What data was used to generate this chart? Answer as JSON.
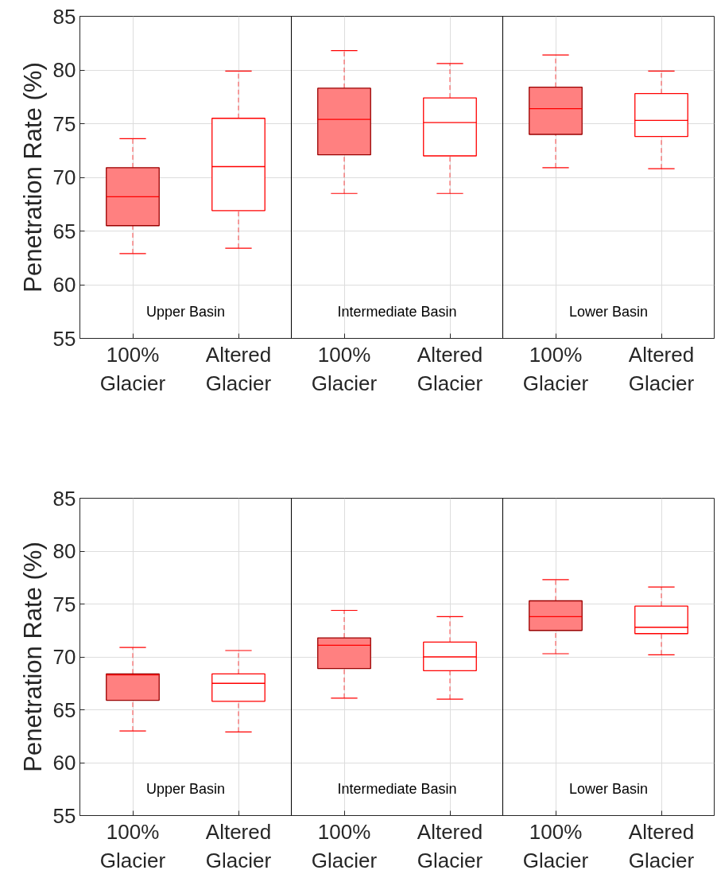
{
  "chart_data": [
    {
      "type": "box",
      "ylabel": "Penetration Rate (%)",
      "categories": [
        "100%\nGlacier",
        "Altered\nGlacier",
        "100%\nGlacier",
        "Altered\nGlacier",
        "100%\nGlacier",
        "Altered\nGlacier"
      ],
      "colors": [
        "#ff8080",
        "#ffffff",
        "#ff8080",
        "#ffffff",
        "#ff8080",
        "#ffffff"
      ],
      "ylim": [
        55,
        85
      ],
      "yticks": [
        55,
        60,
        65,
        70,
        75,
        80,
        85
      ],
      "grid": true,
      "boxes": [
        {
          "low": 62.9,
          "q1": 65.5,
          "median": 68.2,
          "q3": 70.9,
          "high": 73.6
        },
        {
          "low": 63.4,
          "q1": 66.9,
          "median": 71.0,
          "q3": 75.5,
          "high": 79.9
        },
        {
          "low": 68.5,
          "q1": 72.1,
          "median": 75.4,
          "q3": 78.3,
          "high": 81.8
        },
        {
          "low": 68.5,
          "q1": 72.0,
          "median": 75.1,
          "q3": 77.4,
          "high": 80.6
        },
        {
          "low": 70.9,
          "q1": 74.0,
          "median": 76.4,
          "q3": 78.4,
          "high": 81.4
        },
        {
          "low": 70.8,
          "q1": 73.8,
          "median": 75.3,
          "q3": 77.8,
          "high": 79.9
        }
      ],
      "annotations": [
        "Upper Basin",
        "Intermediate Basin",
        "Lower Basin"
      ]
    },
    {
      "type": "box",
      "ylabel": "Penetration Rate (%)",
      "categories": [
        "100%\nGlacier",
        "Altered\nGlacier",
        "100%\nGlacier",
        "Altered\nGlacier",
        "100%\nGlacier",
        "Altered\nGlacier"
      ],
      "colors": [
        "#ff8080",
        "#ffffff",
        "#ff8080",
        "#ffffff",
        "#ff8080",
        "#ffffff"
      ],
      "ylim": [
        55,
        85
      ],
      "yticks": [
        55,
        60,
        65,
        70,
        75,
        80,
        85
      ],
      "grid": true,
      "boxes": [
        {
          "low": 63.0,
          "q1": 65.9,
          "median": 68.3,
          "q3": 68.4,
          "high": 70.9
        },
        {
          "low": 62.9,
          "q1": 65.8,
          "median": 67.5,
          "q3": 68.4,
          "high": 70.6
        },
        {
          "low": 66.1,
          "q1": 68.9,
          "median": 71.1,
          "q3": 71.8,
          "high": 74.4
        },
        {
          "low": 66.0,
          "q1": 68.7,
          "median": 70.0,
          "q3": 71.4,
          "high": 73.8
        },
        {
          "low": 70.3,
          "q1": 72.5,
          "median": 73.8,
          "q3": 75.3,
          "high": 77.3
        },
        {
          "low": 70.2,
          "q1": 72.2,
          "median": 72.8,
          "q3": 74.8,
          "high": 76.6
        }
      ],
      "annotations": [
        "Upper Basin",
        "Intermediate Basin",
        "Lower Basin"
      ]
    }
  ]
}
